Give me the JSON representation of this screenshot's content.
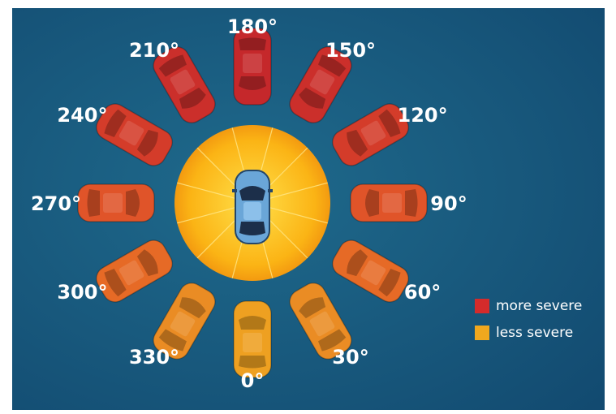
{
  "nodes": [
    {
      "label": "0°",
      "color": "#eea021"
    },
    {
      "label": "30°",
      "color": "#ea8c24"
    },
    {
      "label": "60°",
      "color": "#e66a26"
    },
    {
      "label": "90°",
      "color": "#e05429"
    },
    {
      "label": "120°",
      "color": "#d43c2a"
    },
    {
      "label": "150°",
      "color": "#cb2f2b"
    },
    {
      "label": "180°",
      "color": "#c5282b"
    },
    {
      "label": "210°",
      "color": "#cb2f2b"
    },
    {
      "label": "240°",
      "color": "#d43c2a"
    },
    {
      "label": "270°",
      "color": "#e05429"
    },
    {
      "label": "300°",
      "color": "#e66a26"
    },
    {
      "label": "330°",
      "color": "#ea8c24"
    }
  ],
  "legend": [
    {
      "label": "more severe",
      "color": "#d42b2b"
    },
    {
      "label": "less severe",
      "color": "#f0a81e"
    }
  ]
}
